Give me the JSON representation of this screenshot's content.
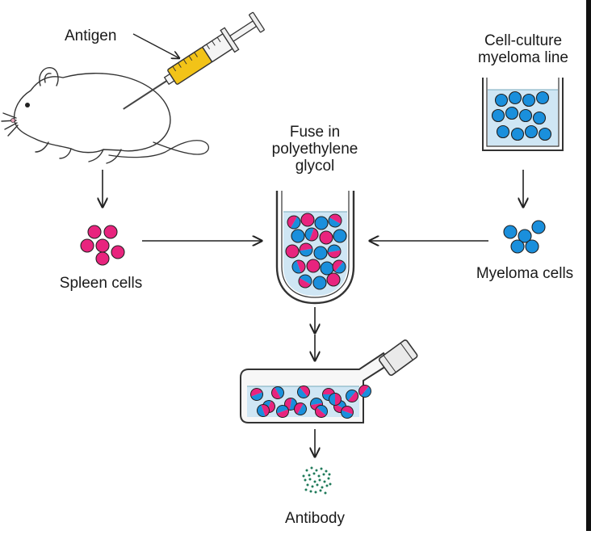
{
  "labels": {
    "antigen": "Antigen",
    "cell_culture_line1": "Cell-culture",
    "cell_culture_line2": "myeloma line",
    "fuse_line1": "Fuse in",
    "fuse_line2": "polyethylene",
    "fuse_line3": "glycol",
    "spleen_cells": "Spleen cells",
    "myeloma_cells": "Myeloma cells",
    "antibody": "Antibody"
  },
  "colors": {
    "spleen_cell": "#e8247e",
    "myeloma_cell": "#1a8fdc",
    "medium": "#cfe6f4",
    "antibody_dot": "#1f7a5a",
    "syringe_barrel": "#f2c318",
    "outline": "#222222"
  },
  "icons": [
    "mouse-icon",
    "syringe-icon",
    "culture-dish-icon",
    "fusion-tube-icon",
    "culture-flask-icon"
  ]
}
